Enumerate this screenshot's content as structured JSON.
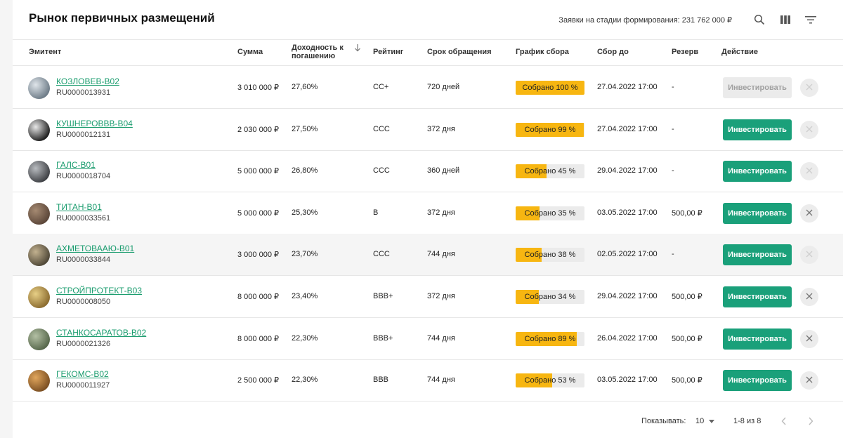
{
  "header": {
    "title": "Рынок первичных размещений",
    "summary": "Заявки на стадии формирования: 231 762 000 ₽",
    "icons": [
      "search-icon",
      "columns-icon",
      "filter-icon"
    ]
  },
  "columns": {
    "issuer": "Эмитент",
    "sum": "Сумма",
    "yield": "Доходность к погашению",
    "rating": "Рейтинг",
    "term": "Срок обращения",
    "progress": "График сбора",
    "deadline": "Сбор до",
    "reserve": "Резерв",
    "action": "Действие"
  },
  "colors": {
    "accent": "#1aa07a",
    "link": "#1a9c6e",
    "progress": "#f7b611"
  },
  "rows": [
    {
      "name": "КОЗЛОВЕВ-B02",
      "isin": "RU0000013931",
      "sum": "3 010 000 ₽",
      "yield": "27,60%",
      "rating": "CC+",
      "term": "720 дней",
      "progress_text": "Собрано 100 %",
      "progress": 1.0,
      "deadline": "27.04.2022 17:00",
      "reserve": "-",
      "button": "Инвестировать",
      "button_enabled": false,
      "cancel_active": false,
      "avatar_colors": [
        "#6c7a86",
        "#dfe5ea"
      ]
    },
    {
      "name": "КУШНЕРОВВВ-B04",
      "isin": "RU0000012131",
      "sum": "2 030 000 ₽",
      "yield": "27,50%",
      "rating": "CCC",
      "term": "372 дня",
      "progress_text": "Собрано 99 %",
      "progress": 0.99,
      "deadline": "27.04.2022 17:00",
      "reserve": "-",
      "button": "Инвестировать",
      "button_enabled": true,
      "cancel_active": false,
      "avatar_colors": [
        "#1b1b1b",
        "#e8e8e8"
      ]
    },
    {
      "name": "ГАЛС-B01",
      "isin": "RU0000018704",
      "sum": "5 000 000 ₽",
      "yield": "26,80%",
      "rating": "CCC",
      "term": "360 дней",
      "progress_text": "Собрано 45 %",
      "progress": 0.45,
      "deadline": "29.04.2022 17:00",
      "reserve": "-",
      "button": "Инвестировать",
      "button_enabled": true,
      "cancel_active": false,
      "avatar_colors": [
        "#3d3f43",
        "#b9bcc0"
      ]
    },
    {
      "name": "ТИТАН-B01",
      "isin": "RU0000033561",
      "sum": "5 000 000 ₽",
      "yield": "25,30%",
      "rating": "B",
      "term": "372 дня",
      "progress_text": "Собрано 35 %",
      "progress": 0.35,
      "deadline": "03.05.2022 17:00",
      "reserve": "500,00 ₽",
      "button": "Инвестировать",
      "button_enabled": true,
      "cancel_active": true,
      "avatar_colors": [
        "#5a4538",
        "#a58a72"
      ]
    },
    {
      "name": "АХМЕТОВААЮ-B01",
      "isin": "RU0000033844",
      "sum": "3 000 000 ₽",
      "yield": "23,70%",
      "rating": "CCC",
      "term": "744 дня",
      "progress_text": "Собрано 38 %",
      "progress": 0.38,
      "deadline": "02.05.2022 17:00",
      "reserve": "-",
      "button": "Инвестировать",
      "button_enabled": true,
      "cancel_active": false,
      "avatar_colors": [
        "#4d4636",
        "#c2b18f"
      ]
    },
    {
      "name": "СТРОЙПРОТЕКТ-B03",
      "isin": "RU0000008050",
      "sum": "8 000 000 ₽",
      "yield": "23,40%",
      "rating": "BBB+",
      "term": "372 дня",
      "progress_text": "Собрано 34 %",
      "progress": 0.34,
      "deadline": "29.04.2022 17:00",
      "reserve": "500,00 ₽",
      "button": "Инвестировать",
      "button_enabled": true,
      "cancel_active": true,
      "avatar_colors": [
        "#8a6a2e",
        "#e7cf86"
      ]
    },
    {
      "name": "СТАНКОСАРАТОВ-B02",
      "isin": "RU0000021326",
      "sum": "8 000 000 ₽",
      "yield": "22,30%",
      "rating": "BBB+",
      "term": "744 дня",
      "progress_text": "Собрано 89 %",
      "progress": 0.89,
      "deadline": "26.04.2022 17:00",
      "reserve": "500,00 ₽",
      "button": "Инвестировать",
      "button_enabled": true,
      "cancel_active": true,
      "avatar_colors": [
        "#55664a",
        "#b3c0a4"
      ]
    },
    {
      "name": "ГЕКОМС-B02",
      "isin": "RU0000011927",
      "sum": "2 500 000 ₽",
      "yield": "22,30%",
      "rating": "BBB",
      "term": "744 дня",
      "progress_text": "Собрано 53 %",
      "progress": 0.53,
      "deadline": "03.05.2022 17:00",
      "reserve": "500,00 ₽",
      "button": "Инвестировать",
      "button_enabled": true,
      "cancel_active": true,
      "avatar_colors": [
        "#7a4e22",
        "#e1a65c"
      ]
    }
  ],
  "highlighted_row": 4,
  "footer": {
    "show_label": "Показывать:",
    "page_size": "10",
    "range": "1-8 из 8"
  }
}
